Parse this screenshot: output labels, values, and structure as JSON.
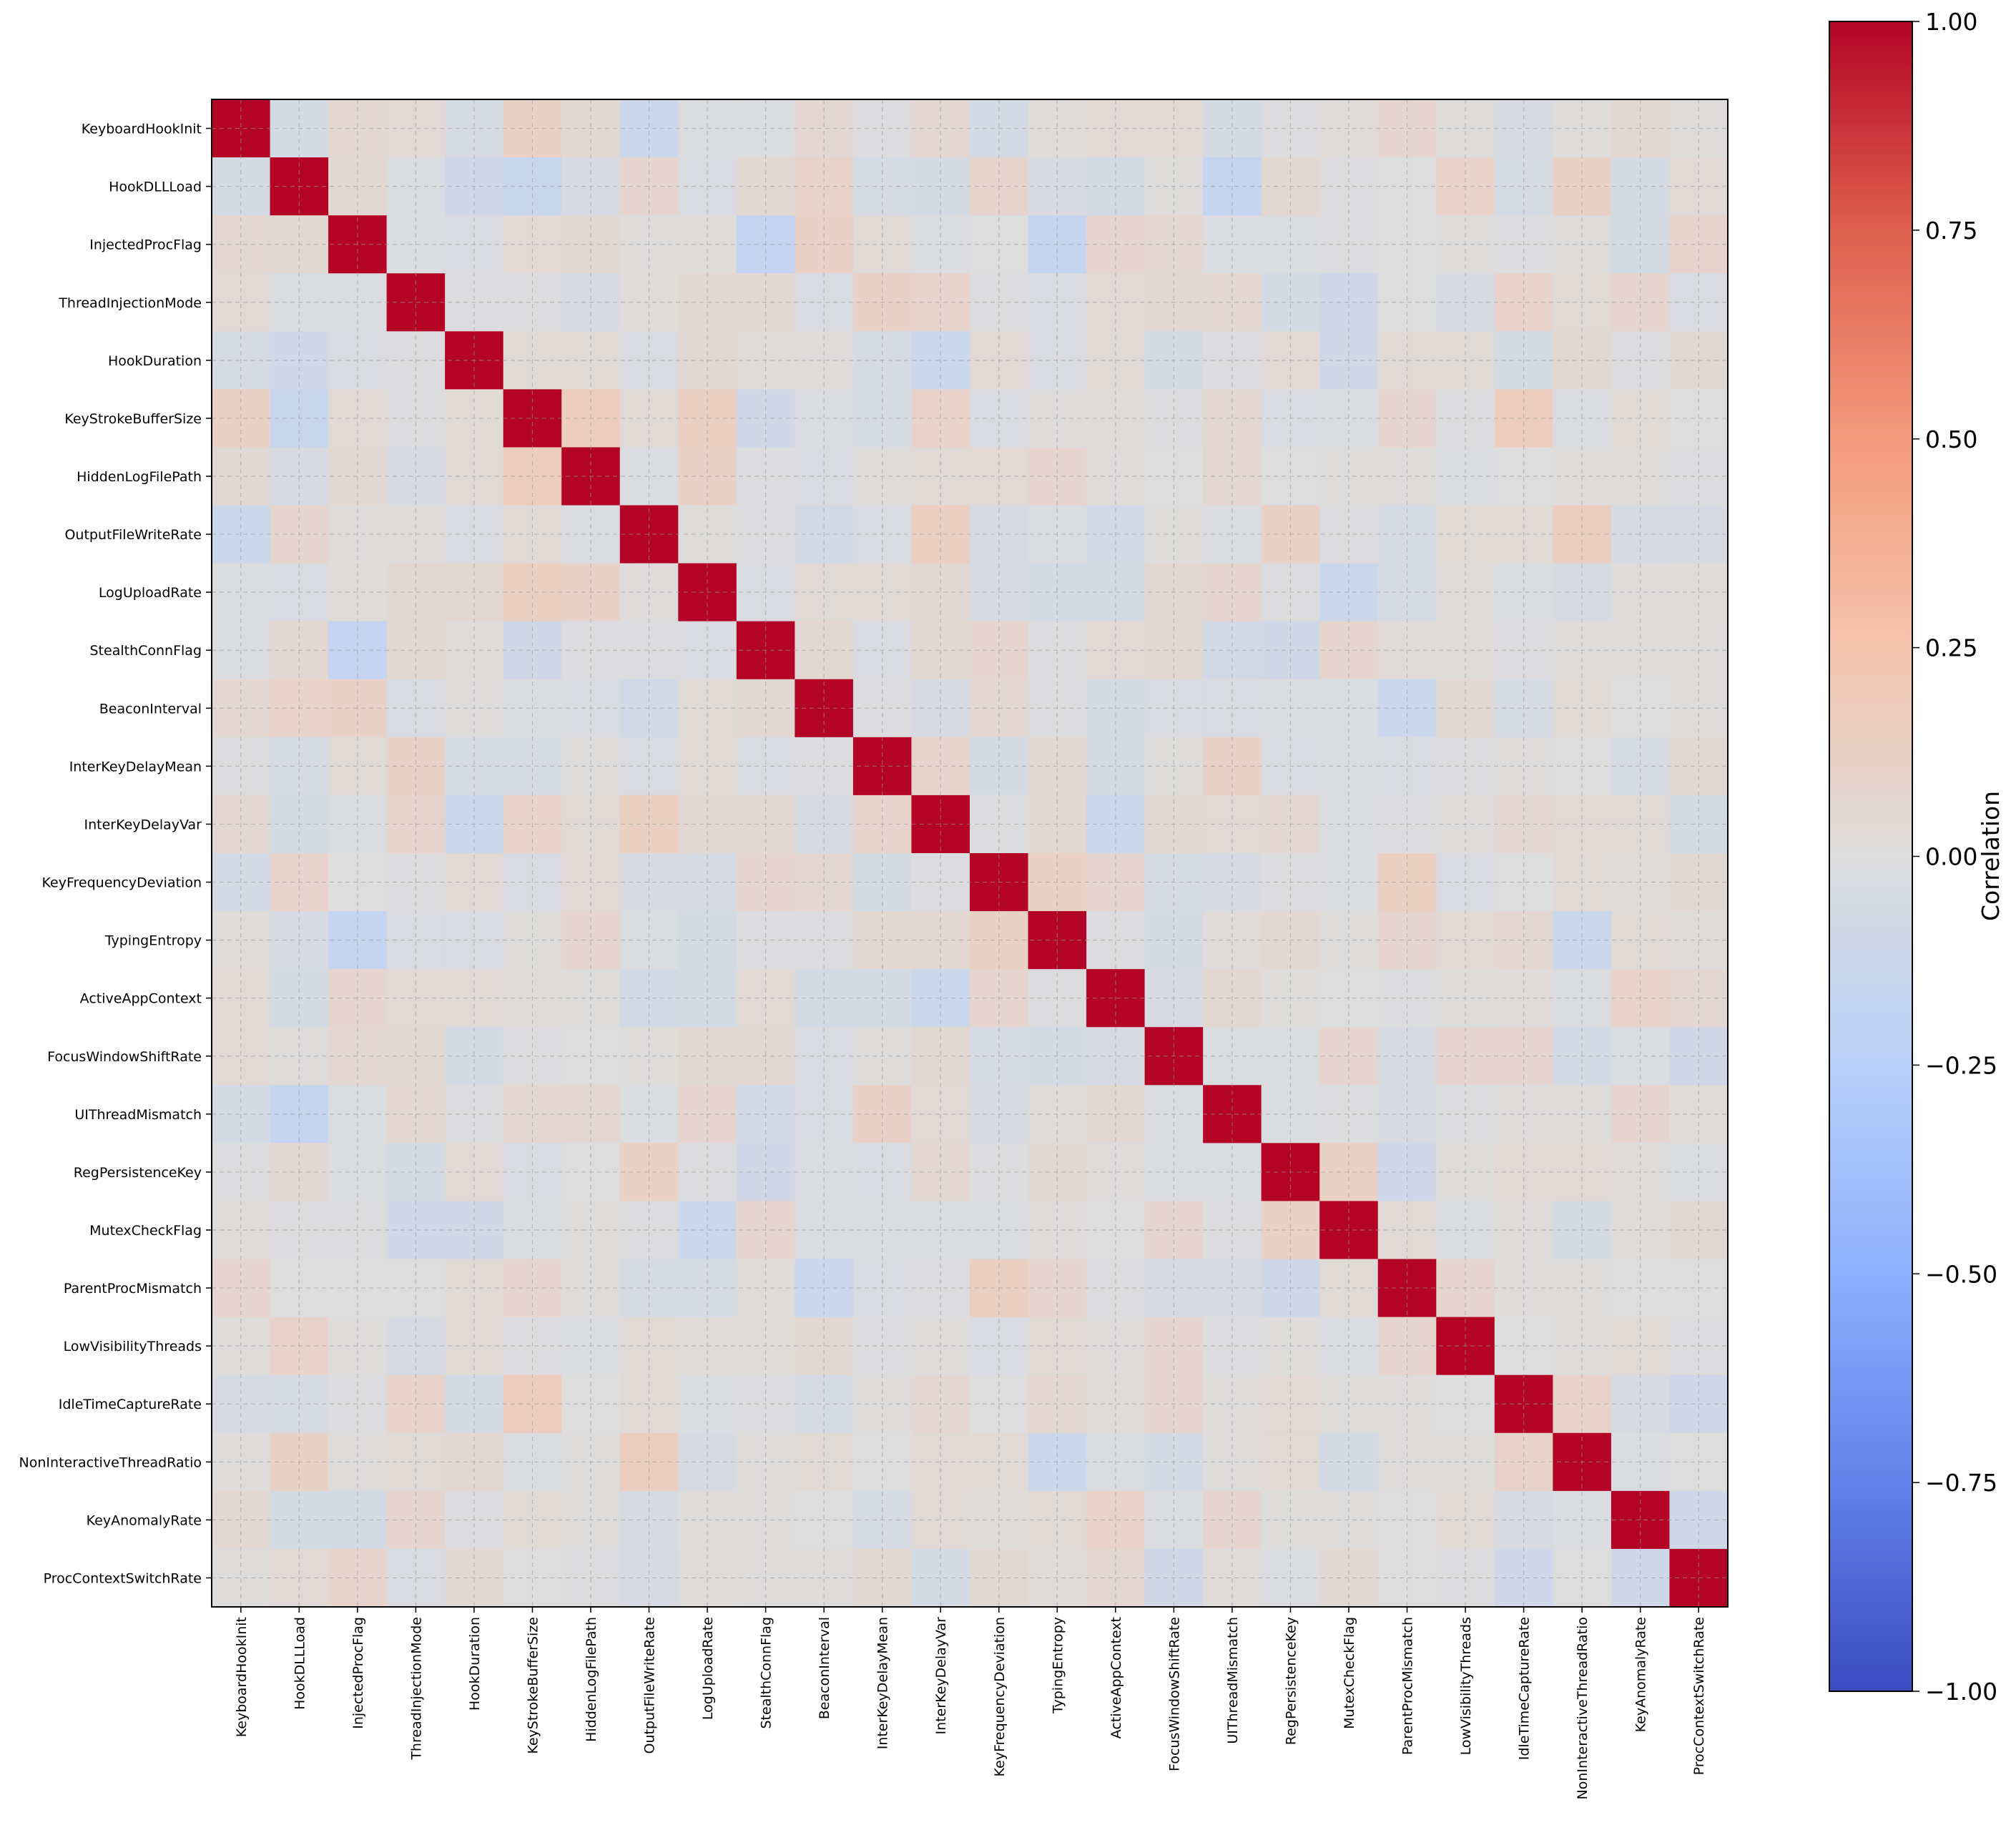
{
  "chart_data": {
    "type": "heatmap",
    "title": "",
    "xlabel": "",
    "ylabel": "",
    "variables": [
      "KeyboardHookInit",
      "HookDLLLoad",
      "InjectedProcFlag",
      "ThreadInjectionMode",
      "HookDuration",
      "KeyStrokeBufferSize",
      "HiddenLogFilePath",
      "OutputFileWriteRate",
      "LogUploadRate",
      "StealthConnFlag",
      "BeaconInterval",
      "InterKeyDelayMean",
      "InterKeyDelayVar",
      "KeyFrequencyDeviation",
      "TypingEntropy",
      "ActiveAppContext",
      "FocusWindowShiftRate",
      "UIThreadMismatch",
      "RegPersistenceKey",
      "MutexCheckFlag",
      "ParentProcMismatch",
      "LowVisibilityThreads",
      "IdleTimeCaptureRate",
      "NonInteractiveThreadRatio",
      "KeyAnomalyRate",
      "ProcContextSwitchRate"
    ],
    "values": [
      [
        1.0,
        -0.06,
        0.07,
        0.04,
        -0.05,
        0.12,
        0.05,
        -0.12,
        -0.02,
        -0.02,
        0.07,
        -0.01,
        0.07,
        -0.07,
        0.02,
        0.04,
        0.04,
        -0.06,
        -0.01,
        0.02,
        0.08,
        0.01,
        -0.04,
        0.01,
        0.06,
        0.01
      ],
      [
        -0.06,
        1.0,
        0.06,
        -0.02,
        -0.1,
        -0.14,
        -0.04,
        0.08,
        -0.03,
        0.06,
        0.1,
        -0.05,
        -0.06,
        0.09,
        -0.04,
        -0.06,
        0.01,
        -0.16,
        0.06,
        -0.01,
        0.0,
        0.1,
        -0.05,
        0.12,
        -0.06,
        0.04
      ],
      [
        0.07,
        0.06,
        1.0,
        -0.02,
        -0.03,
        0.04,
        0.05,
        0.01,
        0.02,
        -0.17,
        0.11,
        0.03,
        -0.02,
        0.0,
        -0.16,
        0.08,
        0.07,
        -0.02,
        -0.02,
        -0.01,
        0.0,
        0.01,
        -0.01,
        0.01,
        -0.06,
        0.09
      ],
      [
        0.04,
        -0.02,
        -0.02,
        1.0,
        -0.01,
        -0.01,
        -0.04,
        0.02,
        0.06,
        0.06,
        -0.03,
        0.11,
        0.09,
        -0.01,
        -0.03,
        0.04,
        0.06,
        0.07,
        -0.06,
        -0.1,
        0.0,
        -0.04,
        0.1,
        0.03,
        0.08,
        -0.03
      ],
      [
        -0.05,
        -0.1,
        -0.03,
        -0.01,
        1.0,
        0.03,
        0.03,
        -0.03,
        0.06,
        0.02,
        0.01,
        -0.05,
        -0.12,
        0.04,
        -0.03,
        0.03,
        -0.06,
        -0.01,
        0.04,
        -0.09,
        0.03,
        0.03,
        -0.06,
        0.06,
        -0.01,
        0.05
      ],
      [
        0.12,
        -0.14,
        0.04,
        -0.01,
        0.03,
        1.0,
        0.16,
        0.03,
        0.14,
        -0.09,
        -0.02,
        -0.05,
        0.1,
        -0.03,
        0.01,
        0.02,
        -0.01,
        0.07,
        -0.03,
        -0.02,
        0.08,
        -0.01,
        0.16,
        -0.02,
        0.03,
        0.0
      ],
      [
        0.05,
        -0.04,
        0.05,
        -0.04,
        0.03,
        0.16,
        1.0,
        -0.02,
        0.11,
        -0.01,
        -0.03,
        0.01,
        0.03,
        0.04,
        0.08,
        0.01,
        0.0,
        0.07,
        0.0,
        0.01,
        0.01,
        -0.02,
        0.0,
        0.01,
        0.01,
        -0.01
      ],
      [
        -0.12,
        0.08,
        0.01,
        0.02,
        -0.03,
        0.03,
        -0.02,
        1.0,
        0.01,
        -0.01,
        -0.08,
        -0.03,
        0.14,
        -0.04,
        -0.02,
        -0.08,
        0.01,
        -0.02,
        0.12,
        -0.01,
        -0.05,
        0.03,
        0.03,
        0.15,
        -0.04,
        -0.04
      ],
      [
        -0.02,
        -0.03,
        0.02,
        0.06,
        0.06,
        0.14,
        0.11,
        0.01,
        1.0,
        -0.03,
        0.03,
        0.03,
        0.05,
        -0.04,
        -0.06,
        -0.06,
        0.05,
        0.08,
        -0.01,
        -0.12,
        -0.05,
        0.02,
        -0.02,
        -0.04,
        0.01,
        0.02
      ],
      [
        -0.02,
        0.06,
        -0.17,
        0.06,
        0.02,
        -0.09,
        -0.01,
        -0.01,
        -0.03,
        1.0,
        0.06,
        -0.03,
        0.06,
        0.08,
        -0.01,
        0.04,
        0.05,
        -0.08,
        -0.09,
        0.08,
        0.02,
        0.02,
        -0.01,
        0.01,
        0.01,
        0.01
      ],
      [
        0.07,
        0.1,
        0.11,
        -0.03,
        0.01,
        -0.02,
        -0.03,
        -0.08,
        0.03,
        0.06,
        1.0,
        -0.01,
        -0.04,
        0.07,
        -0.01,
        -0.06,
        -0.03,
        -0.03,
        -0.02,
        -0.02,
        -0.12,
        0.05,
        -0.05,
        0.03,
        0.0,
        0.01
      ],
      [
        -0.01,
        -0.05,
        0.03,
        0.11,
        -0.05,
        -0.05,
        0.01,
        -0.03,
        0.03,
        -0.03,
        -0.01,
        1.0,
        0.09,
        -0.06,
        0.06,
        -0.06,
        0.01,
        0.11,
        -0.03,
        -0.02,
        -0.03,
        -0.01,
        0.01,
        0.0,
        -0.05,
        0.06
      ],
      [
        0.07,
        -0.06,
        -0.02,
        0.09,
        -0.12,
        0.1,
        0.03,
        0.14,
        0.05,
        0.06,
        -0.04,
        0.09,
        1.0,
        -0.01,
        0.06,
        -0.12,
        0.06,
        0.04,
        0.07,
        -0.02,
        -0.01,
        0.01,
        0.07,
        0.04,
        0.03,
        -0.06
      ],
      [
        -0.07,
        0.09,
        0.0,
        -0.01,
        0.04,
        -0.03,
        0.04,
        -0.04,
        -0.04,
        0.08,
        0.07,
        -0.06,
        -0.01,
        1.0,
        0.12,
        0.08,
        -0.05,
        -0.04,
        -0.01,
        -0.02,
        0.14,
        -0.03,
        0.0,
        0.03,
        0.02,
        0.05
      ],
      [
        0.02,
        -0.04,
        -0.16,
        -0.03,
        -0.03,
        0.01,
        0.08,
        -0.02,
        -0.06,
        -0.01,
        -0.01,
        0.06,
        0.06,
        0.12,
        1.0,
        -0.01,
        -0.06,
        0.02,
        0.05,
        0.01,
        0.08,
        0.04,
        0.07,
        -0.12,
        0.03,
        0.02
      ],
      [
        0.04,
        -0.06,
        0.08,
        0.04,
        0.03,
        0.02,
        0.01,
        -0.08,
        -0.06,
        0.04,
        -0.06,
        -0.06,
        -0.12,
        0.08,
        -0.01,
        1.0,
        -0.04,
        0.06,
        0.01,
        0.0,
        -0.01,
        0.01,
        0.02,
        -0.02,
        0.1,
        0.07
      ],
      [
        0.04,
        0.01,
        0.07,
        0.06,
        -0.06,
        -0.01,
        0.0,
        0.01,
        0.05,
        0.05,
        -0.03,
        0.01,
        0.06,
        -0.05,
        -0.06,
        -0.04,
        1.0,
        -0.02,
        -0.02,
        0.08,
        -0.04,
        0.08,
        0.08,
        -0.07,
        -0.02,
        -0.09
      ],
      [
        -0.06,
        -0.16,
        -0.02,
        0.07,
        -0.01,
        0.07,
        0.07,
        -0.02,
        0.08,
        -0.08,
        -0.03,
        0.11,
        0.04,
        -0.04,
        0.02,
        0.06,
        -0.02,
        1.0,
        -0.02,
        -0.01,
        -0.04,
        -0.01,
        0.01,
        0.01,
        0.08,
        0.02
      ],
      [
        -0.01,
        0.06,
        -0.02,
        -0.06,
        0.04,
        -0.03,
        0.0,
        0.12,
        -0.01,
        -0.09,
        -0.02,
        -0.03,
        0.07,
        -0.01,
        0.05,
        0.01,
        -0.02,
        -0.02,
        1.0,
        0.12,
        -0.1,
        0.01,
        0.04,
        0.04,
        0.01,
        -0.02
      ],
      [
        0.02,
        -0.01,
        -0.01,
        -0.1,
        -0.09,
        -0.02,
        0.01,
        -0.01,
        -0.12,
        0.08,
        -0.02,
        -0.02,
        -0.02,
        -0.02,
        0.01,
        0.0,
        0.08,
        -0.01,
        0.12,
        1.0,
        0.03,
        -0.02,
        0.01,
        -0.06,
        0.01,
        0.06
      ],
      [
        0.08,
        0.0,
        0.0,
        0.0,
        0.03,
        0.08,
        0.01,
        -0.05,
        -0.05,
        0.02,
        -0.12,
        -0.03,
        -0.01,
        0.14,
        0.08,
        -0.01,
        -0.04,
        -0.04,
        -0.1,
        0.03,
        1.0,
        0.08,
        0.01,
        0.01,
        0.0,
        0.0
      ],
      [
        0.01,
        0.1,
        0.01,
        -0.04,
        0.03,
        -0.01,
        -0.02,
        0.03,
        0.02,
        0.02,
        0.05,
        -0.01,
        0.01,
        -0.03,
        0.04,
        0.01,
        0.08,
        -0.01,
        0.01,
        -0.02,
        0.08,
        1.0,
        0.0,
        0.01,
        0.03,
        -0.01
      ],
      [
        -0.04,
        -0.05,
        -0.01,
        0.1,
        -0.06,
        0.16,
        0.0,
        0.03,
        -0.02,
        -0.01,
        -0.05,
        0.01,
        0.07,
        0.0,
        0.07,
        0.02,
        0.08,
        0.01,
        0.04,
        0.01,
        0.01,
        0.0,
        1.0,
        0.1,
        -0.04,
        -0.1
      ],
      [
        0.01,
        0.12,
        0.01,
        0.03,
        0.06,
        -0.02,
        0.01,
        0.15,
        -0.04,
        0.01,
        0.03,
        0.0,
        0.04,
        0.03,
        -0.12,
        -0.02,
        -0.07,
        0.01,
        0.04,
        -0.06,
        0.01,
        0.01,
        0.1,
        1.0,
        -0.02,
        0.0
      ],
      [
        0.06,
        -0.06,
        -0.06,
        0.08,
        -0.01,
        0.03,
        0.01,
        -0.04,
        0.01,
        0.01,
        0.0,
        -0.05,
        0.03,
        0.02,
        0.03,
        0.1,
        -0.02,
        0.08,
        0.01,
        0.01,
        0.0,
        0.03,
        -0.04,
        -0.02,
        1.0,
        -0.1
      ],
      [
        0.01,
        0.04,
        0.09,
        -0.03,
        0.05,
        0.0,
        -0.01,
        -0.04,
        0.02,
        0.01,
        0.01,
        0.06,
        -0.06,
        0.05,
        0.02,
        0.07,
        -0.09,
        0.02,
        -0.02,
        0.06,
        0.0,
        -0.01,
        -0.1,
        0.0,
        -0.1,
        1.0
      ]
    ],
    "colorbar": {
      "label": "Correlation",
      "range": [
        -1.0,
        1.0
      ],
      "ticks": [
        1.0,
        0.75,
        0.5,
        0.25,
        0.0,
        -0.25,
        -0.5,
        -0.75,
        -1.0
      ],
      "tick_labels": [
        "1.00",
        "0.75",
        "0.50",
        "0.25",
        "0.00",
        "−0.25",
        "−0.50",
        "−0.75",
        "−1.00"
      ],
      "colormap": "coolwarm",
      "low_color": "#3b4cc0",
      "mid_color": "#dddddd",
      "high_color": "#b40426"
    },
    "grid": true,
    "cell_boundaries": false
  }
}
